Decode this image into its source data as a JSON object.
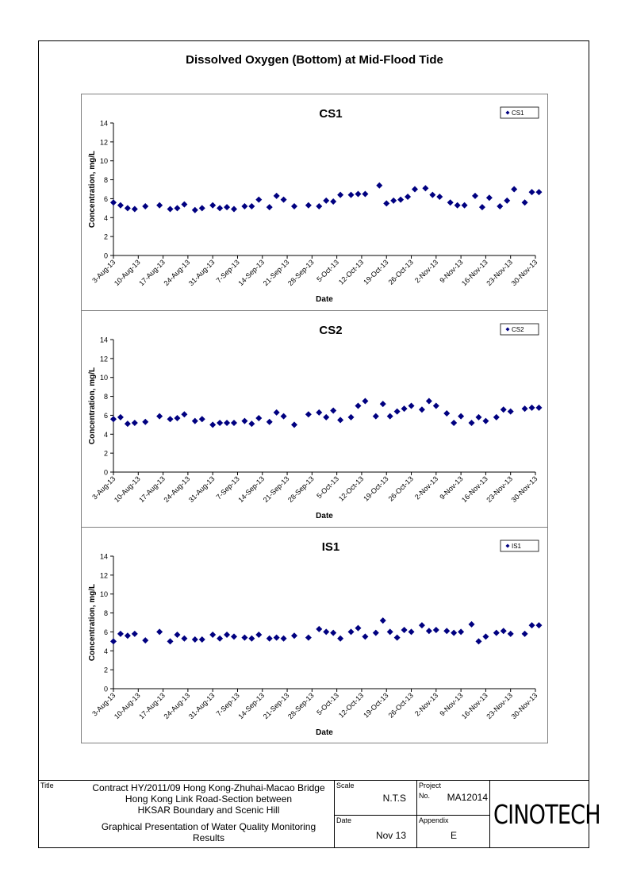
{
  "page_title": "Dissolved Oxygen (Bottom) at Mid-Flood Tide",
  "chart_data": [
    {
      "type": "scatter",
      "title": "CS1",
      "xlabel": "Date",
      "ylabel": "Concentration, mg/L",
      "ylim": [
        0,
        14
      ],
      "yticks": [
        0,
        2,
        4,
        6,
        8,
        10,
        12,
        14
      ],
      "xlim": [
        "2013-08-03",
        "2013-11-30"
      ],
      "xtick_labels": [
        "3-Aug-13",
        "10-Aug-13",
        "17-Aug-13",
        "24-Aug-13",
        "31-Aug-13",
        "7-Sep-13",
        "14-Sep-13",
        "21-Sep-13",
        "28-Sep-13",
        "5-Oct-13",
        "12-Oct-13",
        "19-Oct-13",
        "26-Oct-13",
        "2-Nov-13",
        "9-Nov-13",
        "16-Nov-13",
        "23-Nov-13",
        "30-Nov-13"
      ],
      "grid": false,
      "legend": "top-right",
      "series": [
        {
          "name": "CS1",
          "color": "#000080",
          "x": [
            "2013-08-03",
            "2013-08-05",
            "2013-08-07",
            "2013-08-09",
            "2013-08-12",
            "2013-08-16",
            "2013-08-19",
            "2013-08-21",
            "2013-08-23",
            "2013-08-26",
            "2013-08-28",
            "2013-08-31",
            "2013-09-02",
            "2013-09-04",
            "2013-09-06",
            "2013-09-09",
            "2013-09-11",
            "2013-09-13",
            "2013-09-16",
            "2013-09-18",
            "2013-09-20",
            "2013-09-23",
            "2013-09-27",
            "2013-09-30",
            "2013-10-02",
            "2013-10-04",
            "2013-10-06",
            "2013-10-09",
            "2013-10-11",
            "2013-10-13",
            "2013-10-17",
            "2013-10-19",
            "2013-10-21",
            "2013-10-23",
            "2013-10-25",
            "2013-10-27",
            "2013-10-30",
            "2013-11-01",
            "2013-11-03",
            "2013-11-06",
            "2013-11-08",
            "2013-11-10",
            "2013-11-13",
            "2013-11-15",
            "2013-11-17",
            "2013-11-20",
            "2013-11-22",
            "2013-11-24",
            "2013-11-27",
            "2013-11-29",
            "2013-12-01"
          ],
          "y": [
            5.6,
            5.3,
            5.0,
            4.9,
            5.2,
            5.3,
            4.9,
            5.0,
            5.4,
            4.8,
            5.0,
            5.3,
            5.0,
            5.1,
            4.9,
            5.2,
            5.2,
            5.9,
            5.1,
            6.3,
            5.9,
            5.2,
            5.3,
            5.2,
            5.8,
            5.7,
            6.4,
            6.4,
            6.5,
            6.5,
            7.4,
            5.5,
            5.8,
            5.9,
            6.2,
            7.0,
            7.1,
            6.4,
            6.2,
            5.6,
            5.3,
            5.3,
            6.3,
            5.1,
            6.1,
            5.2,
            5.8,
            7.0,
            5.6,
            6.7,
            6.7
          ]
        }
      ]
    },
    {
      "type": "scatter",
      "title": "CS2",
      "xlabel": "Date",
      "ylabel": "Concentration, mg/L",
      "ylim": [
        0,
        14
      ],
      "yticks": [
        0,
        2,
        4,
        6,
        8,
        10,
        12,
        14
      ],
      "xlim": [
        "2013-08-03",
        "2013-11-30"
      ],
      "xtick_labels": [
        "3-Aug-13",
        "10-Aug-13",
        "17-Aug-13",
        "24-Aug-13",
        "31-Aug-13",
        "7-Sep-13",
        "14-Sep-13",
        "21-Sep-13",
        "28-Sep-13",
        "5-Oct-13",
        "12-Oct-13",
        "19-Oct-13",
        "26-Oct-13",
        "2-Nov-13",
        "9-Nov-13",
        "16-Nov-13",
        "23-Nov-13",
        "30-Nov-13"
      ],
      "grid": false,
      "legend": "top-right",
      "series": [
        {
          "name": "CS2",
          "color": "#000080",
          "x": [
            "2013-08-03",
            "2013-08-05",
            "2013-08-07",
            "2013-08-09",
            "2013-08-12",
            "2013-08-16",
            "2013-08-19",
            "2013-08-21",
            "2013-08-23",
            "2013-08-26",
            "2013-08-28",
            "2013-08-31",
            "2013-09-02",
            "2013-09-04",
            "2013-09-06",
            "2013-09-09",
            "2013-09-11",
            "2013-09-13",
            "2013-09-16",
            "2013-09-18",
            "2013-09-20",
            "2013-09-23",
            "2013-09-27",
            "2013-09-30",
            "2013-10-02",
            "2013-10-04",
            "2013-10-06",
            "2013-10-09",
            "2013-10-11",
            "2013-10-13",
            "2013-10-16",
            "2013-10-18",
            "2013-10-20",
            "2013-10-22",
            "2013-10-24",
            "2013-10-26",
            "2013-10-29",
            "2013-10-31",
            "2013-11-02",
            "2013-11-05",
            "2013-11-07",
            "2013-11-09",
            "2013-11-12",
            "2013-11-14",
            "2013-11-16",
            "2013-11-19",
            "2013-11-21",
            "2013-11-23",
            "2013-11-27",
            "2013-11-29",
            "2013-12-01"
          ],
          "y": [
            5.6,
            5.8,
            5.1,
            5.2,
            5.3,
            5.9,
            5.6,
            5.7,
            6.1,
            5.4,
            5.6,
            5.0,
            5.2,
            5.2,
            5.2,
            5.4,
            5.1,
            5.7,
            5.3,
            6.3,
            5.9,
            5.0,
            6.1,
            6.3,
            5.8,
            6.5,
            5.5,
            5.8,
            7.0,
            7.5,
            5.9,
            7.2,
            5.9,
            6.4,
            6.7,
            7.0,
            6.6,
            7.5,
            7.0,
            6.2,
            5.2,
            5.9,
            5.2,
            5.8,
            5.4,
            5.8,
            6.6,
            6.4,
            6.7,
            6.8,
            6.8
          ]
        }
      ]
    },
    {
      "type": "scatter",
      "title": "IS1",
      "xlabel": "Date",
      "ylabel": "Concentration, mg/L",
      "ylim": [
        0,
        14
      ],
      "yticks": [
        0,
        2,
        4,
        6,
        8,
        10,
        12,
        14
      ],
      "xlim": [
        "2013-08-03",
        "2013-11-30"
      ],
      "xtick_labels": [
        "3-Aug-13",
        "10-Aug-13",
        "17-Aug-13",
        "24-Aug-13",
        "31-Aug-13",
        "7-Sep-13",
        "14-Sep-13",
        "21-Sep-13",
        "28-Sep-13",
        "5-Oct-13",
        "12-Oct-13",
        "19-Oct-13",
        "26-Oct-13",
        "2-Nov-13",
        "9-Nov-13",
        "16-Nov-13",
        "23-Nov-13",
        "30-Nov-13"
      ],
      "grid": false,
      "legend": "top-right",
      "series": [
        {
          "name": "IS1",
          "color": "#000080",
          "x": [
            "2013-08-03",
            "2013-08-05",
            "2013-08-07",
            "2013-08-09",
            "2013-08-12",
            "2013-08-16",
            "2013-08-19",
            "2013-08-21",
            "2013-08-23",
            "2013-08-26",
            "2013-08-28",
            "2013-08-31",
            "2013-09-02",
            "2013-09-04",
            "2013-09-06",
            "2013-09-09",
            "2013-09-11",
            "2013-09-13",
            "2013-09-16",
            "2013-09-18",
            "2013-09-20",
            "2013-09-23",
            "2013-09-27",
            "2013-09-30",
            "2013-10-02",
            "2013-10-04",
            "2013-10-06",
            "2013-10-09",
            "2013-10-11",
            "2013-10-13",
            "2013-10-16",
            "2013-10-18",
            "2013-10-20",
            "2013-10-22",
            "2013-10-24",
            "2013-10-26",
            "2013-10-29",
            "2013-10-31",
            "2013-11-02",
            "2013-11-05",
            "2013-11-07",
            "2013-11-09",
            "2013-11-12",
            "2013-11-14",
            "2013-11-16",
            "2013-11-19",
            "2013-11-21",
            "2013-11-23",
            "2013-11-27",
            "2013-11-29",
            "2013-12-01"
          ],
          "y": [
            5.0,
            5.8,
            5.6,
            5.8,
            5.1,
            6.0,
            5.0,
            5.7,
            5.3,
            5.2,
            5.2,
            5.7,
            5.3,
            5.7,
            5.5,
            5.4,
            5.3,
            5.7,
            5.3,
            5.4,
            5.3,
            5.6,
            5.4,
            6.3,
            6.0,
            5.9,
            5.3,
            6.0,
            6.4,
            5.5,
            5.9,
            7.2,
            6.0,
            5.4,
            6.2,
            6.0,
            6.7,
            6.1,
            6.2,
            6.1,
            5.9,
            6.0,
            6.8,
            5.0,
            5.5,
            5.9,
            6.1,
            5.8,
            5.8,
            6.7,
            6.7
          ]
        }
      ]
    }
  ],
  "title_block": {
    "title_label": "Title",
    "title_lines": [
      "Contract HY/2011/09 Hong Kong-Zhuhai-Macao Bridge",
      "Hong Kong Link Road-Section between",
      "HKSAR Boundary and Scenic Hill"
    ],
    "subtitle_lines": [
      "Graphical Presentation of Water Quality Monitoring",
      "Results"
    ],
    "scale_label": "Scale",
    "scale_value": "N.T.S",
    "date_label": "Date",
    "date_value": "Nov 13",
    "project_label": "Project",
    "no_label": "No.",
    "project_no": "MA12014",
    "appendix_label": "Appendix",
    "appendix_value": "E",
    "logo_text": "CINOTECH"
  }
}
